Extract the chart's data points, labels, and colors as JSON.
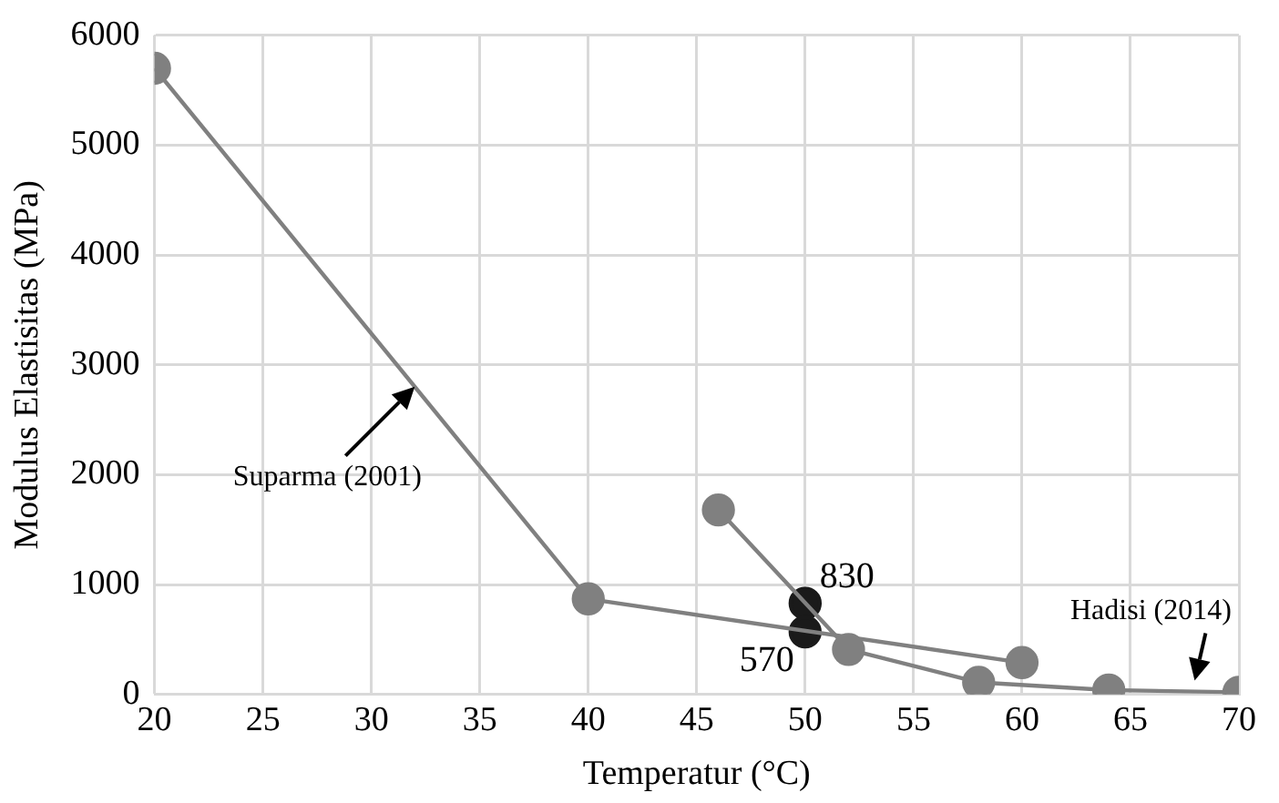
{
  "chart_data": {
    "type": "line",
    "xlabel": "Temperatur (°C)",
    "ylabel": "Modulus Elastisitas (MPa)",
    "xlim": [
      20,
      70
    ],
    "xticks": [
      20,
      25,
      30,
      35,
      40,
      45,
      50,
      55,
      60,
      65,
      70
    ],
    "ylim": [
      0,
      6000
    ],
    "yticks": [
      0,
      1000,
      2000,
      3000,
      4000,
      5000,
      6000
    ],
    "grid": true,
    "legend": false,
    "marker": "circle",
    "line_style": "solid",
    "series": [
      {
        "name": "Suparma (2001)",
        "color": "#808080",
        "x": [
          20,
          40,
          60
        ],
        "values": [
          5700,
          870,
          290
        ]
      },
      {
        "name": "Hadisi (2014)",
        "color": "#808080",
        "x": [
          46,
          52,
          58,
          64,
          70
        ],
        "values": [
          1680,
          410,
          110,
          40,
          20
        ]
      },
      {
        "type": "scatter",
        "color": "#1a1a1a",
        "x": [
          50,
          50
        ],
        "values": [
          830,
          570
        ],
        "value_labels": [
          "830",
          "570"
        ]
      }
    ]
  }
}
